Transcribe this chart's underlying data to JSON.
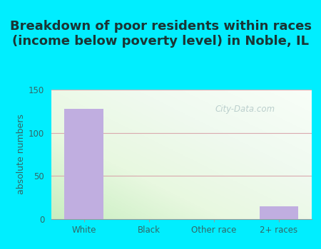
{
  "title": "Breakdown of poor residents within races\n(income below poverty level) in Noble, IL",
  "categories": [
    "White",
    "Black",
    "Other race",
    "2+ races"
  ],
  "values": [
    128,
    0,
    0,
    15
  ],
  "bar_color": "#c0aee0",
  "ylabel": "absolute numbers",
  "ylim": [
    0,
    150
  ],
  "yticks": [
    0,
    50,
    100,
    150
  ],
  "background_outer": "#00eeff",
  "grid_color": "#d8a0a8",
  "title_fontsize": 13,
  "title_color": "#1a3535",
  "axis_label_fontsize": 9,
  "tick_fontsize": 8.5,
  "tick_color": "#336666",
  "watermark": "City-Data.com"
}
